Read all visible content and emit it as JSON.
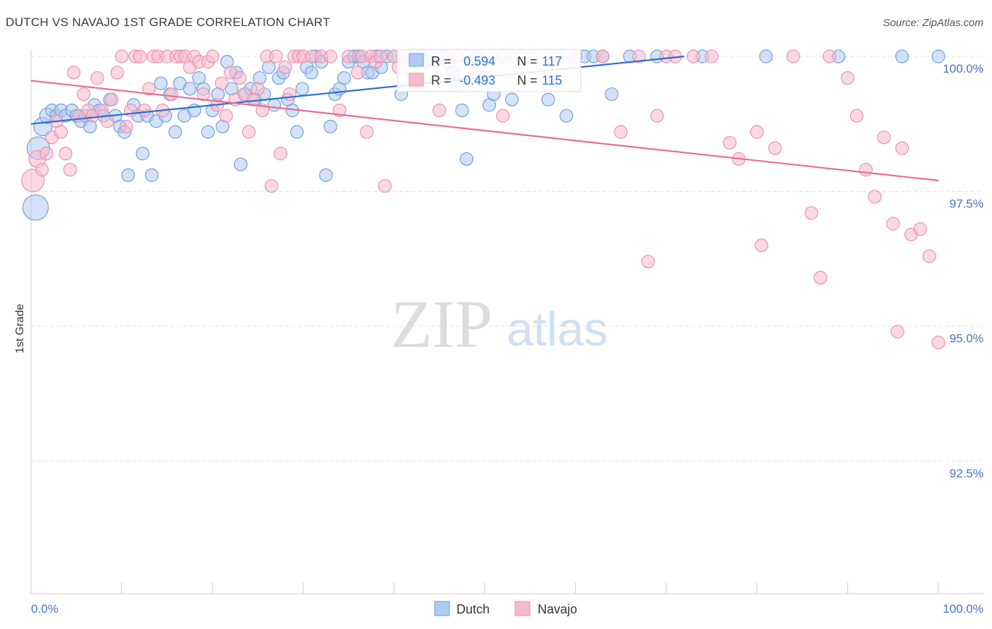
{
  "title": "DUTCH VS NAVAJO 1ST GRADE CORRELATION CHART",
  "source": "Source: ZipAtlas.com",
  "watermark": {
    "zip": "ZIP",
    "atlas": "atlas"
  },
  "colors": {
    "dutch_fill": "#aecbef",
    "dutch_stroke": "#6f9ee0",
    "dutch_line": "#2e6fcf",
    "navajo_fill": "#f7b9cc",
    "navajo_stroke": "#ee8fae",
    "navajo_line": "#e86a95",
    "axis_text": "#4472c4",
    "grid": "#e3e3e3"
  },
  "legend_box": {
    "rows": [
      {
        "r_label": "R =",
        "r_value": "0.594",
        "n_label": "N =",
        "n_value": "117"
      },
      {
        "r_label": "R =",
        "r_value": "-0.493",
        "n_label": "N =",
        "n_value": "115"
      }
    ]
  },
  "chart_data": {
    "type": "scatter",
    "title": "DUTCH VS NAVAJO 1ST GRADE CORRELATION CHART",
    "xlabel": "",
    "ylabel": "1st Grade",
    "xlim": [
      0,
      100
    ],
    "ylim": [
      90.2,
      100.35
    ],
    "x_tick_labels": [
      "0.0%",
      "100.0%"
    ],
    "y_ticks": [
      {
        "value": 100.0,
        "label": "100.0%"
      },
      {
        "value": 97.5,
        "label": "97.5%"
      },
      {
        "value": 95.0,
        "label": "95.0%"
      },
      {
        "value": 92.5,
        "label": "92.5%"
      }
    ],
    "grid": true,
    "legend_position": "bottom-center",
    "series": [
      {
        "name": "Dutch",
        "r": 0.594,
        "n": 117,
        "trend": {
          "x": [
            0,
            72
          ],
          "y": [
            98.75,
            100.0
          ]
        },
        "points": [
          [
            0.5,
            97.2,
            18
          ],
          [
            0.8,
            98.3,
            16
          ],
          [
            1.3,
            98.7,
            13
          ],
          [
            1.8,
            98.9,
            11
          ],
          [
            2.3,
            99.0,
            9
          ],
          [
            2.8,
            98.9,
            9
          ],
          [
            3.3,
            99.0,
            9
          ],
          [
            3.8,
            98.9,
            9
          ],
          [
            4.5,
            99.0,
            9
          ],
          [
            5.0,
            98.9,
            9
          ],
          [
            5.5,
            98.8,
            9
          ],
          [
            6.0,
            98.9,
            9
          ],
          [
            6.5,
            98.7,
            9
          ],
          [
            7.0,
            99.1,
            9
          ],
          [
            7.5,
            99.0,
            9
          ],
          [
            8.0,
            98.9,
            9
          ],
          [
            8.7,
            99.2,
            9
          ],
          [
            9.3,
            98.9,
            9
          ],
          [
            9.8,
            98.7,
            9
          ],
          [
            10.3,
            98.6,
            9
          ],
          [
            10.7,
            97.8,
            9
          ],
          [
            11.3,
            99.1,
            9
          ],
          [
            11.8,
            98.9,
            9
          ],
          [
            12.3,
            98.2,
            9
          ],
          [
            12.8,
            98.9,
            9
          ],
          [
            13.3,
            97.8,
            9
          ],
          [
            13.8,
            98.8,
            9
          ],
          [
            14.3,
            99.5,
            9
          ],
          [
            14.8,
            98.9,
            9
          ],
          [
            15.3,
            99.3,
            9
          ],
          [
            15.9,
            98.6,
            9
          ],
          [
            16.4,
            99.5,
            9
          ],
          [
            16.9,
            98.9,
            9
          ],
          [
            17.5,
            99.4,
            9
          ],
          [
            18.0,
            99.0,
            9
          ],
          [
            18.5,
            99.6,
            9
          ],
          [
            19.0,
            99.4,
            9
          ],
          [
            19.5,
            98.6,
            9
          ],
          [
            20.0,
            99.0,
            9
          ],
          [
            20.6,
            99.3,
            9
          ],
          [
            21.1,
            98.7,
            9
          ],
          [
            21.6,
            99.9,
            9
          ],
          [
            22.1,
            99.4,
            9
          ],
          [
            22.6,
            99.7,
            9
          ],
          [
            23.1,
            98.0,
            9
          ],
          [
            23.6,
            99.3,
            9
          ],
          [
            24.2,
            99.4,
            9
          ],
          [
            24.7,
            99.2,
            9
          ],
          [
            25.2,
            99.6,
            9
          ],
          [
            25.7,
            99.3,
            9
          ],
          [
            26.2,
            99.8,
            9
          ],
          [
            26.8,
            99.1,
            9
          ],
          [
            27.3,
            99.6,
            9
          ],
          [
            27.8,
            99.7,
            9
          ],
          [
            28.3,
            99.2,
            9
          ],
          [
            28.8,
            99.0,
            9
          ],
          [
            29.3,
            98.6,
            9
          ],
          [
            29.9,
            99.4,
            9
          ],
          [
            30.4,
            99.8,
            9
          ],
          [
            30.9,
            99.7,
            9
          ],
          [
            31.4,
            100.0,
            9
          ],
          [
            32.0,
            99.9,
            9
          ],
          [
            32.5,
            97.8,
            9
          ],
          [
            33.0,
            98.7,
            9
          ],
          [
            33.5,
            99.3,
            9
          ],
          [
            34.0,
            99.4,
            9
          ],
          [
            34.5,
            99.6,
            9
          ],
          [
            35.0,
            99.9,
            9
          ],
          [
            35.6,
            100.0,
            9
          ],
          [
            36.1,
            100.0,
            9
          ],
          [
            36.6,
            99.9,
            9
          ],
          [
            37.1,
            99.7,
            9
          ],
          [
            37.6,
            99.7,
            9
          ],
          [
            38.1,
            100.0,
            9
          ],
          [
            38.6,
            99.8,
            9
          ],
          [
            39.2,
            100.0,
            9
          ],
          [
            40.0,
            100.0,
            9
          ],
          [
            40.8,
            99.3,
            9
          ],
          [
            41.5,
            100.0,
            9
          ],
          [
            42.0,
            99.7,
            9
          ],
          [
            42.5,
            100.0,
            9
          ],
          [
            43.0,
            100.0,
            9
          ],
          [
            43.5,
            99.9,
            9
          ],
          [
            44.0,
            100.0,
            9
          ],
          [
            44.5,
            99.9,
            9
          ],
          [
            45.0,
            100.0,
            9
          ],
          [
            45.5,
            100.0,
            9
          ],
          [
            46.0,
            99.9,
            9
          ],
          [
            46.5,
            99.7,
            9
          ],
          [
            47.0,
            99.5,
            9
          ],
          [
            47.5,
            99.0,
            9
          ],
          [
            48.0,
            98.1,
            9
          ],
          [
            48.5,
            99.9,
            9
          ],
          [
            49.0,
            100.0,
            9
          ],
          [
            49.5,
            100.0,
            9
          ],
          [
            50.0,
            99.6,
            9
          ],
          [
            50.5,
            99.1,
            9
          ],
          [
            51.0,
            99.3,
            9
          ],
          [
            52.0,
            100.0,
            9
          ],
          [
            53.0,
            99.2,
            9
          ],
          [
            54.0,
            100.0,
            9
          ],
          [
            55.0,
            100.0,
            9
          ],
          [
            57.0,
            99.2,
            9
          ],
          [
            58.0,
            100.0,
            9
          ],
          [
            59.0,
            98.9,
            9
          ],
          [
            60.0,
            100.0,
            9
          ],
          [
            61.0,
            100.0,
            9
          ],
          [
            62.0,
            100.0,
            9
          ],
          [
            63.0,
            100.0,
            9
          ],
          [
            64.0,
            99.3,
            9
          ],
          [
            66.0,
            100.0,
            9
          ],
          [
            69.0,
            100.0,
            9
          ],
          [
            74.0,
            100.0,
            9
          ],
          [
            81.0,
            100.0,
            9
          ],
          [
            89.0,
            100.0,
            9
          ],
          [
            96.0,
            100.0,
            9
          ],
          [
            100.0,
            100.0,
            9
          ]
        ]
      },
      {
        "name": "Navajo",
        "r": -0.493,
        "n": 115,
        "trend": {
          "x": [
            0,
            100
          ],
          "y": [
            99.55,
            97.7
          ]
        },
        "points": [
          [
            0.2,
            97.7,
            16
          ],
          [
            0.7,
            98.1,
            12
          ],
          [
            1.2,
            97.9,
            9
          ],
          [
            1.7,
            98.2,
            9
          ],
          [
            2.3,
            98.5,
            9
          ],
          [
            2.8,
            98.8,
            9
          ],
          [
            3.3,
            98.6,
            9
          ],
          [
            3.8,
            98.2,
            9
          ],
          [
            4.3,
            97.9,
            9
          ],
          [
            4.7,
            99.7,
            9
          ],
          [
            5.3,
            98.9,
            9
          ],
          [
            5.8,
            99.3,
            9
          ],
          [
            6.3,
            99.0,
            9
          ],
          [
            6.8,
            98.9,
            9
          ],
          [
            7.3,
            99.6,
            9
          ],
          [
            7.8,
            99.0,
            9
          ],
          [
            8.4,
            98.8,
            9
          ],
          [
            8.9,
            99.2,
            9
          ],
          [
            9.5,
            99.7,
            9
          ],
          [
            10.0,
            100.0,
            9
          ],
          [
            10.5,
            98.7,
            9
          ],
          [
            11.0,
            99.0,
            9
          ],
          [
            11.5,
            100.0,
            9
          ],
          [
            12.0,
            100.0,
            9
          ],
          [
            12.5,
            99.0,
            9
          ],
          [
            13.0,
            99.4,
            9
          ],
          [
            13.5,
            100.0,
            9
          ],
          [
            14.0,
            100.0,
            9
          ],
          [
            14.5,
            99.0,
            9
          ],
          [
            15.0,
            100.0,
            9
          ],
          [
            15.5,
            99.3,
            9
          ],
          [
            16.0,
            100.0,
            9
          ],
          [
            16.5,
            100.0,
            9
          ],
          [
            17.0,
            100.0,
            9
          ],
          [
            17.5,
            99.8,
            9
          ],
          [
            18.0,
            100.0,
            9
          ],
          [
            18.5,
            99.9,
            9
          ],
          [
            19.0,
            99.3,
            9
          ],
          [
            19.5,
            99.9,
            9
          ],
          [
            20.0,
            100.0,
            9
          ],
          [
            20.5,
            99.1,
            9
          ],
          [
            21.0,
            99.5,
            9
          ],
          [
            21.5,
            98.9,
            9
          ],
          [
            22.0,
            99.7,
            9
          ],
          [
            22.5,
            99.2,
            9
          ],
          [
            23.0,
            99.6,
            9
          ],
          [
            23.5,
            99.3,
            9
          ],
          [
            24.0,
            98.6,
            9
          ],
          [
            24.5,
            99.2,
            9
          ],
          [
            25.0,
            99.4,
            9
          ],
          [
            25.5,
            99.0,
            9
          ],
          [
            26.0,
            100.0,
            9
          ],
          [
            26.5,
            97.6,
            9
          ],
          [
            27.0,
            100.0,
            9
          ],
          [
            27.5,
            98.2,
            9
          ],
          [
            28.0,
            99.8,
            9
          ],
          [
            28.5,
            99.3,
            9
          ],
          [
            29.0,
            100.0,
            9
          ],
          [
            29.5,
            100.0,
            9
          ],
          [
            30.0,
            100.0,
            9
          ],
          [
            31.0,
            100.0,
            9
          ],
          [
            32.0,
            100.0,
            9
          ],
          [
            33.0,
            100.0,
            9
          ],
          [
            34.0,
            99.0,
            9
          ],
          [
            35.0,
            100.0,
            9
          ],
          [
            36.0,
            99.7,
            9
          ],
          [
            36.5,
            100.0,
            9
          ],
          [
            37.0,
            98.6,
            9
          ],
          [
            37.5,
            100.0,
            9
          ],
          [
            38.0,
            99.9,
            9
          ],
          [
            38.5,
            100.0,
            9
          ],
          [
            39.0,
            97.6,
            9
          ],
          [
            40.0,
            100.0,
            9
          ],
          [
            40.5,
            99.8,
            9
          ],
          [
            41.0,
            100.0,
            9
          ],
          [
            42.0,
            100.0,
            9
          ],
          [
            45.0,
            99.0,
            9
          ],
          [
            46.0,
            100.0,
            9
          ],
          [
            47.0,
            100.0,
            9
          ],
          [
            48.0,
            100.0,
            9
          ],
          [
            52.0,
            98.9,
            9
          ],
          [
            53.0,
            100.0,
            9
          ],
          [
            55.0,
            100.0,
            9
          ],
          [
            58.0,
            100.0,
            9
          ],
          [
            60.0,
            100.0,
            9
          ],
          [
            63.0,
            100.0,
            9
          ],
          [
            65.0,
            98.6,
            9
          ],
          [
            67.0,
            100.0,
            9
          ],
          [
            69.0,
            98.9,
            9
          ],
          [
            70.0,
            100.0,
            9
          ],
          [
            71.0,
            100.0,
            9
          ],
          [
            73.0,
            100.0,
            9
          ],
          [
            75.0,
            100.0,
            9
          ],
          [
            77.0,
            98.4,
            9
          ],
          [
            78.0,
            98.1,
            9
          ],
          [
            80.0,
            98.6,
            9
          ],
          [
            82.0,
            98.3,
            9
          ],
          [
            84.0,
            100.0,
            9
          ],
          [
            86.0,
            97.1,
            9
          ],
          [
            88.0,
            100.0,
            9
          ],
          [
            90.0,
            99.6,
            9
          ],
          [
            91.0,
            98.9,
            9
          ],
          [
            92.0,
            97.9,
            9
          ],
          [
            93.0,
            97.4,
            9
          ],
          [
            94.0,
            98.5,
            9
          ],
          [
            95.0,
            96.9,
            9
          ],
          [
            96.0,
            98.3,
            9
          ],
          [
            97.0,
            96.7,
            9
          ],
          [
            98.0,
            96.8,
            9
          ],
          [
            99.0,
            96.3,
            9
          ],
          [
            100.0,
            94.7,
            9
          ],
          [
            68.0,
            96.2,
            9
          ],
          [
            80.5,
            96.5,
            9
          ],
          [
            87.0,
            95.9,
            9
          ],
          [
            95.5,
            94.9,
            9
          ]
        ]
      }
    ]
  }
}
